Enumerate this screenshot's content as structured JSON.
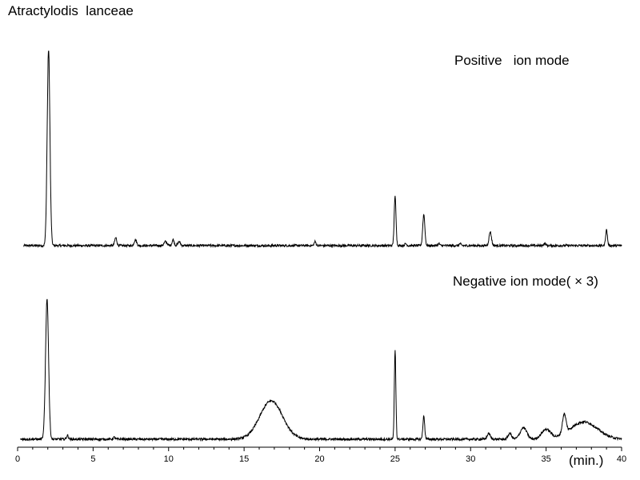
{
  "chart_data": {
    "type": "line",
    "title": "Atractylodis  lanceae",
    "xlabel": "(min.)",
    "ylabel": "",
    "xlim": [
      0,
      40
    ],
    "xticks": [
      {
        "v": 0,
        "label": "0"
      },
      {
        "v": 5,
        "label": "5"
      },
      {
        "v": 10,
        "label": "10"
      },
      {
        "v": 15,
        "label": "15"
      },
      {
        "v": 20,
        "label": "20"
      },
      {
        "v": 25,
        "label": "25"
      },
      {
        "v": 30,
        "label": "30"
      },
      {
        "v": 35,
        "label": "35"
      },
      {
        "v": 40,
        "label": "40"
      }
    ],
    "grid": false,
    "y_axis_shown": false,
    "line_color": "#000000",
    "series": [
      {
        "name": "Positive   ion mode",
        "baseline": 0.02,
        "peaks": [
          {
            "t": 2.05,
            "h": 1.0,
            "w": 0.09
          },
          {
            "t": 6.5,
            "h": 0.04,
            "w": 0.07
          },
          {
            "t": 7.8,
            "h": 0.03,
            "w": 0.08
          },
          {
            "t": 9.8,
            "h": 0.02,
            "w": 0.1
          },
          {
            "t": 10.3,
            "h": 0.03,
            "w": 0.07
          },
          {
            "t": 10.7,
            "h": 0.02,
            "w": 0.08
          },
          {
            "t": 19.7,
            "h": 0.02,
            "w": 0.06
          },
          {
            "t": 25.0,
            "h": 0.25,
            "w": 0.06
          },
          {
            "t": 25.7,
            "h": 0.01,
            "w": 0.06
          },
          {
            "t": 26.9,
            "h": 0.16,
            "w": 0.07
          },
          {
            "t": 27.9,
            "h": 0.01,
            "w": 0.06
          },
          {
            "t": 29.3,
            "h": 0.01,
            "w": 0.06
          },
          {
            "t": 31.3,
            "h": 0.07,
            "w": 0.08
          },
          {
            "t": 34.9,
            "h": 0.01,
            "w": 0.08
          },
          {
            "t": 39.0,
            "h": 0.08,
            "w": 0.06
          }
        ]
      },
      {
        "name": "Negative ion mode( × 3)",
        "baseline": 0.02,
        "peaks": [
          {
            "t": 1.95,
            "h": 0.73,
            "w": 0.1
          },
          {
            "t": 3.3,
            "h": 0.02,
            "w": 0.06
          },
          {
            "t": 6.4,
            "h": 0.01,
            "w": 0.06
          },
          {
            "t": 16.8,
            "h": 0.2,
            "w": 0.75
          },
          {
            "t": 25.0,
            "h": 0.46,
            "w": 0.05
          },
          {
            "t": 26.9,
            "h": 0.12,
            "w": 0.06
          },
          {
            "t": 31.2,
            "h": 0.03,
            "w": 0.1
          },
          {
            "t": 32.6,
            "h": 0.03,
            "w": 0.12
          },
          {
            "t": 33.5,
            "h": 0.06,
            "w": 0.22
          },
          {
            "t": 35.0,
            "h": 0.05,
            "w": 0.3
          },
          {
            "t": 36.2,
            "h": 0.1,
            "w": 0.12
          },
          {
            "t": 37.5,
            "h": 0.09,
            "w": 0.9
          }
        ]
      }
    ]
  }
}
